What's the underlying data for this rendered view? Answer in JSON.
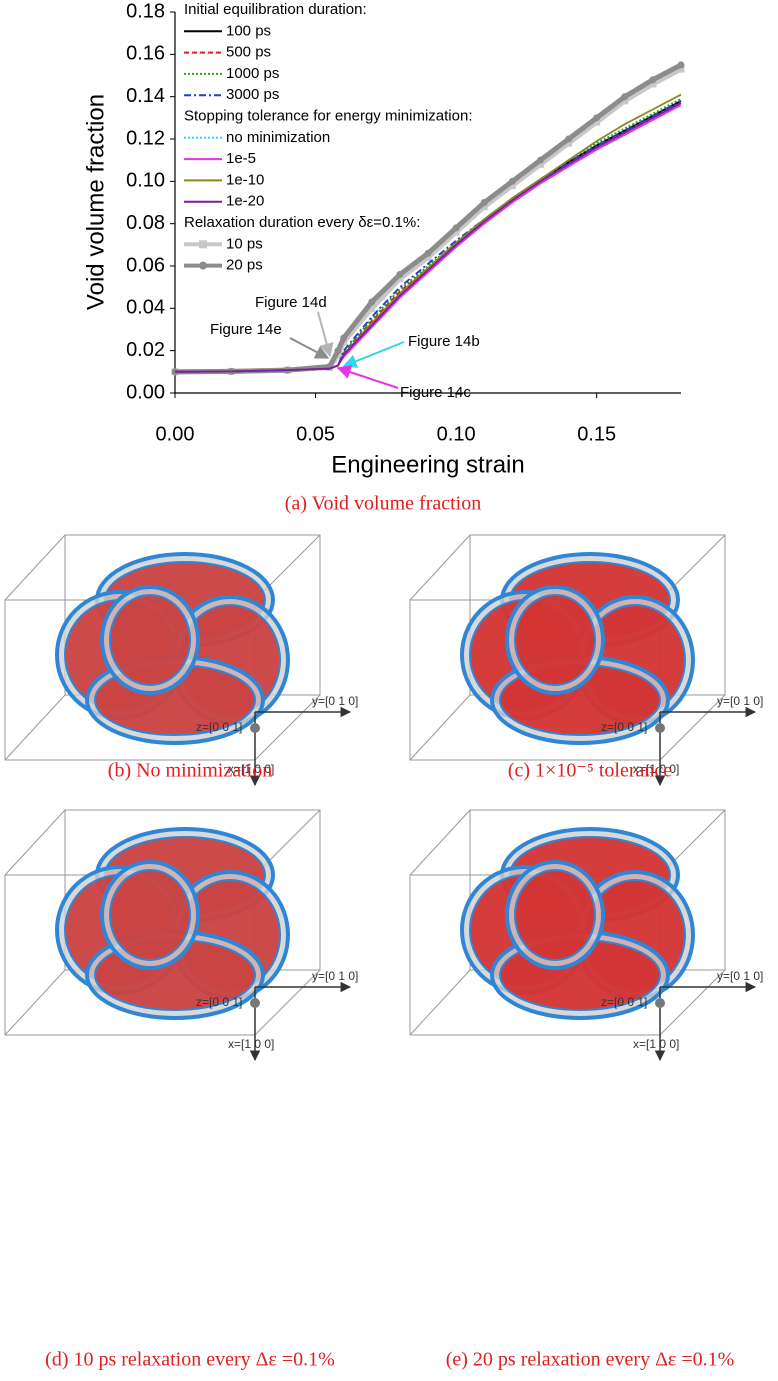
{
  "chart_data": {
    "type": "line",
    "x_label": "Engineering strain",
    "y_label": "Void volume fraction",
    "caption": "(a) Void volume fraction",
    "xlim": [
      0,
      0.18
    ],
    "ylim": [
      0,
      0.18
    ],
    "xticks": [
      {
        "value": 0,
        "label": "0.00"
      },
      0.05,
      {
        "value": 0.1,
        "label": "0.10"
      },
      0.15
    ],
    "yticks": [
      {
        "value": 0,
        "label": "0.00"
      },
      0.02,
      0.04,
      0.06,
      0.08,
      {
        "value": 0.1,
        "label": "0.10"
      },
      0.12,
      0.14,
      0.16,
      0.18
    ],
    "x": [
      0,
      0.02,
      0.04,
      0.055,
      0.058,
      0.06,
      0.07,
      0.08,
      0.09,
      0.1,
      0.11,
      0.12,
      0.13,
      0.14,
      0.15,
      0.16,
      0.17,
      0.18
    ],
    "series": [
      {
        "group": "Initial equilibration duration:",
        "name": "100 ps",
        "color": "#000000",
        "dash": "solid",
        "values": [
          0.01,
          0.0102,
          0.0108,
          0.0115,
          0.013,
          0.018,
          0.033,
          0.047,
          0.059,
          0.071,
          0.082,
          0.092,
          0.101,
          0.109,
          0.117,
          0.124,
          0.131,
          0.138
        ]
      },
      {
        "group": "Initial equilibration duration:",
        "name": "500 ps",
        "color": "#e41a1c",
        "dash": "dashed",
        "values": [
          0.01,
          0.0102,
          0.0108,
          0.0115,
          0.013,
          0.019,
          0.034,
          0.048,
          0.059,
          0.07,
          0.081,
          0.091,
          0.1,
          0.108,
          0.116,
          0.123,
          0.13,
          0.137
        ]
      },
      {
        "group": "Initial equilibration duration:",
        "name": "1000 ps",
        "color": "#2ca02c",
        "dash": "dotted",
        "values": [
          0.01,
          0.0102,
          0.0108,
          0.0115,
          0.013,
          0.019,
          0.035,
          0.049,
          0.06,
          0.071,
          0.082,
          0.092,
          0.101,
          0.11,
          0.118,
          0.125,
          0.132,
          0.139
        ]
      },
      {
        "group": "Initial equilibration duration:",
        "name": "3000 ps",
        "color": "#1f3fbf",
        "dash": "dashdot",
        "values": [
          0.01,
          0.0102,
          0.0108,
          0.0115,
          0.013,
          0.02,
          0.036,
          0.05,
          0.061,
          0.072,
          0.082,
          0.092,
          0.101,
          0.109,
          0.117,
          0.124,
          0.131,
          0.138
        ]
      },
      {
        "group": "Stopping tolerance for energy minimization:",
        "name": "no minimization",
        "color": "#33d6e6",
        "dash": "dotted",
        "values": [
          0.01,
          0.0102,
          0.0108,
          0.0115,
          0.013,
          0.017,
          0.031,
          0.045,
          0.057,
          0.069,
          0.08,
          0.09,
          0.099,
          0.108,
          0.116,
          0.123,
          0.13,
          0.137
        ]
      },
      {
        "group": "Stopping tolerance for energy minimization:",
        "name": "1e-5",
        "color": "#e633e6",
        "dash": "solid",
        "values": [
          0.01,
          0.0102,
          0.0108,
          0.0115,
          0.013,
          0.017,
          0.031,
          0.045,
          0.057,
          0.069,
          0.08,
          0.09,
          0.099,
          0.107,
          0.115,
          0.122,
          0.129,
          0.136
        ]
      },
      {
        "group": "Stopping tolerance for energy minimization:",
        "name": "1e-10",
        "color": "#8a8a1e",
        "dash": "solid",
        "values": [
          0.01,
          0.0102,
          0.0108,
          0.0115,
          0.013,
          0.018,
          0.033,
          0.047,
          0.059,
          0.071,
          0.082,
          0.092,
          0.101,
          0.11,
          0.119,
          0.127,
          0.134,
          0.141
        ]
      },
      {
        "group": "Stopping tolerance for energy minimization:",
        "name": "1e-20",
        "color": "#7a1fa2",
        "dash": "solid",
        "values": [
          0.01,
          0.0102,
          0.0108,
          0.0115,
          0.013,
          0.018,
          0.032,
          0.046,
          0.058,
          0.07,
          0.081,
          0.091,
          0.1,
          0.108,
          0.116,
          0.123,
          0.13,
          0.137
        ]
      },
      {
        "group": "Relaxation duration every δε=0.1%:",
        "name": "10 ps",
        "color": "#c8c8c8",
        "dash": "solid",
        "marker": "square",
        "values": [
          0.01,
          0.0102,
          0.0108,
          0.012,
          0.018,
          0.024,
          0.04,
          0.054,
          0.064,
          0.076,
          0.088,
          0.098,
          0.108,
          0.118,
          0.128,
          0.138,
          0.146,
          0.153
        ]
      },
      {
        "group": "Relaxation duration every δε=0.1%:",
        "name": "20 ps",
        "color": "#8c8c8c",
        "dash": "solid",
        "marker": "circle",
        "values": [
          0.01,
          0.0102,
          0.0108,
          0.0125,
          0.02,
          0.026,
          0.043,
          0.056,
          0.066,
          0.078,
          0.09,
          0.1,
          0.11,
          0.12,
          0.13,
          0.14,
          0.148,
          0.155
        ]
      }
    ],
    "annotations": [
      {
        "text": "Figure 14d",
        "color": "#b4b4b4"
      },
      {
        "text": "Figure 14e",
        "color": "#8c8c8c"
      },
      {
        "text": "Figure 14b",
        "color": "#33d6e6"
      },
      {
        "text": "Figure 14c",
        "color": "#e633e6"
      }
    ]
  },
  "panels": [
    {
      "caption": "(b) No minimization",
      "axis_labels": [
        "z=[0 0 1]",
        "y=[0 1 0]",
        "x=[1 0 0]"
      ]
    },
    {
      "caption": "(c) 1×10⁻⁵ tolerance",
      "axis_labels": [
        "z=[0 0 1]",
        "y=[0 1 0]",
        "x=[1 0 0]"
      ]
    },
    {
      "caption": "(d) 10 ps relaxation every Δε =0.1%",
      "axis_labels": [
        "z=[0 0 1]",
        "y=[0 1 0]",
        "x=[1 0 0]"
      ]
    },
    {
      "caption": "(e) 20 ps relaxation every Δε =0.1%",
      "axis_labels": [
        "z=[0 0 1]",
        "y=[0 1 0]",
        "x=[1 0 0]"
      ]
    }
  ]
}
